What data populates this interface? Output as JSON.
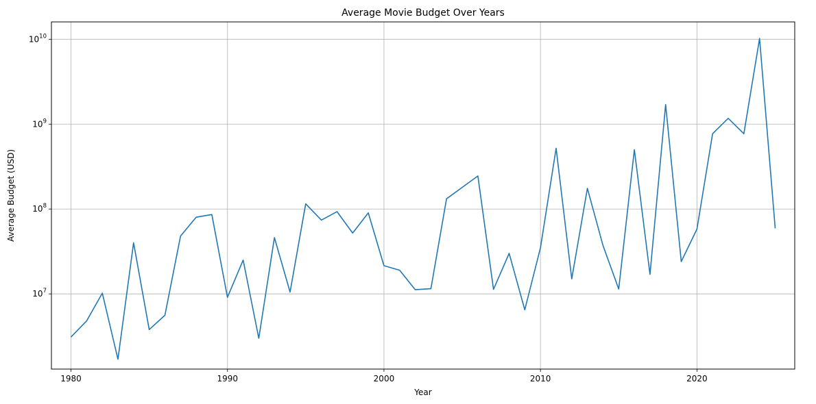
{
  "chart_data": {
    "type": "line",
    "title": "Average Movie Budget Over Years",
    "xlabel": "Year",
    "ylabel": "Average Budget (USD)",
    "yscale": "log",
    "xlim": [
      1978.75,
      2026.25
    ],
    "ylim": [
      1300000,
      16000000000
    ],
    "grid": true,
    "color": "#1f77b4",
    "x_ticks": [
      1980,
      1990,
      2000,
      2010,
      2020
    ],
    "y_ticks": [
      {
        "value": 10000000,
        "base": "10",
        "exp": "7"
      },
      {
        "value": 100000000,
        "base": "10",
        "exp": "8"
      },
      {
        "value": 1000000000,
        "base": "10",
        "exp": "9"
      },
      {
        "value": 10000000000,
        "base": "10",
        "exp": "10"
      }
    ],
    "x": [
      1980,
      1981,
      1982,
      1983,
      1984,
      1985,
      1986,
      1987,
      1988,
      1989,
      1990,
      1991,
      1992,
      1993,
      1994,
      1995,
      1996,
      1997,
      1998,
      1999,
      2000,
      2001,
      2002,
      2003,
      2004,
      2005,
      2006,
      2007,
      2008,
      2009,
      2010,
      2011,
      2012,
      2013,
      2014,
      2015,
      2016,
      2017,
      2018,
      2019,
      2020,
      2021,
      2022,
      2023,
      2024,
      2025
    ],
    "values": [
      3100000,
      4800000,
      10200000,
      1700000,
      40000000,
      3800000,
      5600000,
      48000000,
      80000000,
      86000000,
      9100000,
      25000000,
      3000000,
      46000000,
      10500000,
      115000000,
      74000000,
      93000000,
      52000000,
      90000000,
      21500000,
      19000000,
      11200000,
      11500000,
      132000000,
      180000000,
      245000000,
      11300000,
      30000000,
      6500000,
      35000000,
      520000000,
      15000000,
      175000000,
      37000000,
      11400000,
      500000000,
      17000000,
      1700000000,
      24000000,
      58000000,
      770000000,
      1170000000,
      770000000,
      10200000000,
      59000000
    ]
  }
}
